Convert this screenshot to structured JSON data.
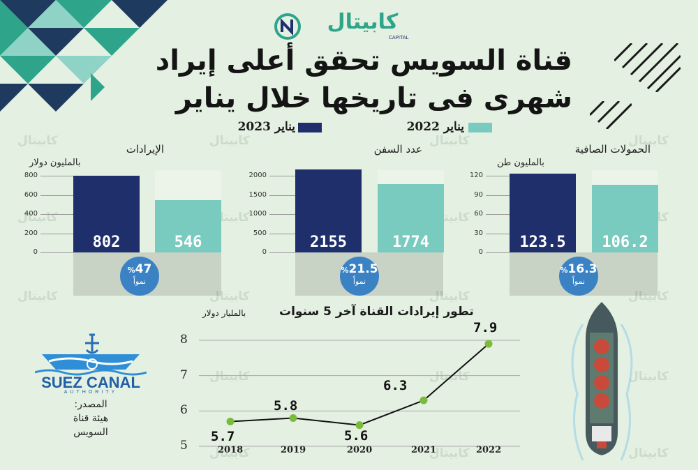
{
  "brand": {
    "logo_text": "كابيتال",
    "logo_sub": "CAPITAL",
    "colors": {
      "green": "#2ea58a",
      "navy": "#1e2f6b",
      "teal": "#79cbbf"
    }
  },
  "header": {
    "title_line1": "قناة السويس تحقق أعلى إيراد",
    "title_line2": "شهرى فى تاريخها خلال يناير"
  },
  "legend": {
    "items": [
      {
        "label": "يناير 2023",
        "color": "#1e2f6b"
      },
      {
        "label": "يناير 2022",
        "color": "#79cbbf"
      }
    ]
  },
  "watermark": {
    "text": "كابيتال"
  },
  "chart_data": [
    {
      "type": "bar",
      "title": "الإيرادات",
      "ylabel": "بالمليون دولار",
      "categories": [
        "يناير 2023",
        "يناير 2022"
      ],
      "values": [
        802,
        546
      ],
      "value_labels": [
        "802",
        "546"
      ],
      "ylim": [
        0,
        800
      ],
      "yticks": [
        "800",
        "600",
        "400",
        "200",
        "0"
      ],
      "growth": {
        "value": "47",
        "pct": "%",
        "label": "نمواً"
      },
      "colors": [
        "#1e2f6b",
        "#79cbbf"
      ]
    },
    {
      "type": "bar",
      "title": "عدد السفن",
      "ylabel": "",
      "categories": [
        "يناير 2023",
        "يناير 2022"
      ],
      "values": [
        2155,
        1774
      ],
      "value_labels": [
        "2155",
        "1774"
      ],
      "ylim": [
        0,
        2000
      ],
      "yticks": [
        "2000",
        "1500",
        "1000",
        "500",
        "0"
      ],
      "growth": {
        "value": "21.5",
        "pct": "%",
        "label": "نمواً"
      },
      "colors": [
        "#1e2f6b",
        "#79cbbf"
      ]
    },
    {
      "type": "bar",
      "title": "الحمولات الصافية",
      "ylabel": "بالمليون طن",
      "categories": [
        "يناير 2023",
        "يناير 2022"
      ],
      "values": [
        123.5,
        106.2
      ],
      "value_labels": [
        "123.5",
        "106.2"
      ],
      "ylim": [
        0,
        120
      ],
      "yticks": [
        "120",
        "90",
        "60",
        "30",
        "0"
      ],
      "growth": {
        "value": "16.3",
        "pct": "%",
        "label": "نمواً"
      },
      "colors": [
        "#1e2f6b",
        "#79cbbf"
      ]
    },
    {
      "type": "line",
      "title": "تطور إيرادات القناة آخر 5 سنوات",
      "ylabel": "بالمليار دولار",
      "x": [
        "2018",
        "2019",
        "2020",
        "2021",
        "2022"
      ],
      "values": [
        5.7,
        5.8,
        5.6,
        6.3,
        7.9
      ],
      "value_labels": [
        "5.7",
        "5.8",
        "5.6",
        "6.3",
        "7.9"
      ],
      "ylim": [
        5,
        8
      ],
      "yticks": [
        "8",
        "7",
        "6",
        "5"
      ],
      "grid": true,
      "colors": [
        "#111111",
        "#7cba3f"
      ]
    }
  ],
  "source": {
    "logo_text": "SUEZ CANAL",
    "logo_sub": "AUTHORITY",
    "label": "المصدر:",
    "name_line1": "هيئة قناة",
    "name_line2": "السويس"
  }
}
